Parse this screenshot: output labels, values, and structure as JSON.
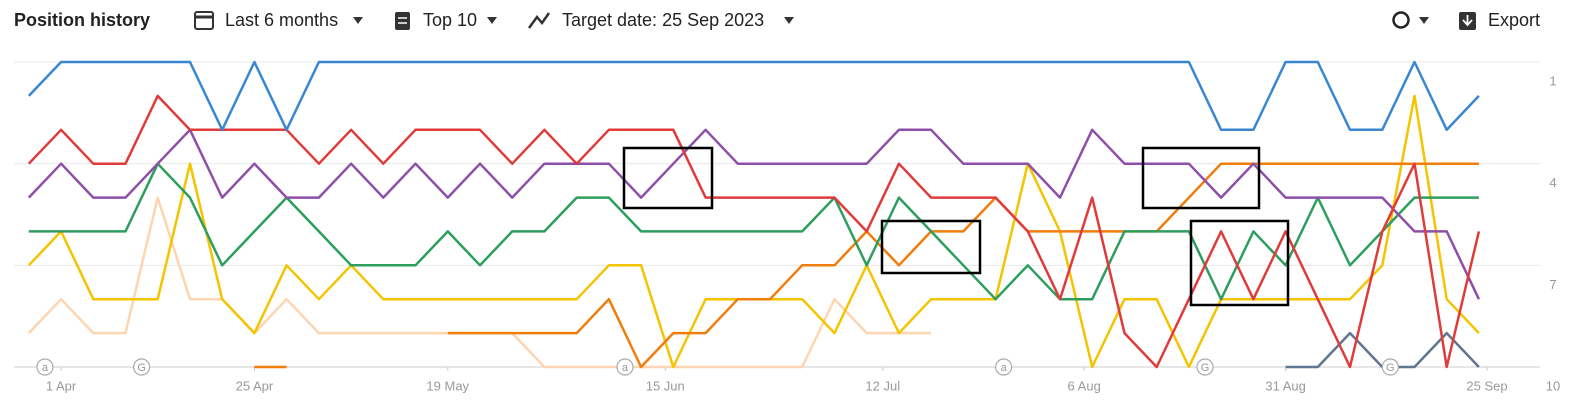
{
  "toolbar": {
    "title": "Position history",
    "period": "Last 6 months",
    "top": "Top 10",
    "target": "Target date: 25 Sep 2023",
    "export": "Export"
  },
  "chart_data": {
    "type": "line",
    "x": [
      -4,
      0,
      4,
      8,
      12,
      16,
      20,
      24,
      28,
      32,
      36,
      40,
      44,
      48,
      52,
      56,
      60,
      64,
      68,
      72,
      76,
      80,
      84,
      88,
      92,
      96,
      100,
      104,
      108,
      112,
      116,
      120,
      124,
      128,
      132,
      136,
      140,
      144,
      148,
      152,
      156,
      160,
      164,
      168,
      172,
      176
    ],
    "xlim": [
      -4.6,
      177
    ],
    "xticks": [
      {
        "value": 0,
        "label": "1 Apr"
      },
      {
        "value": 24,
        "label": "25 Apr"
      },
      {
        "value": 48,
        "label": "19 May"
      },
      {
        "value": 75,
        "label": "15 Jun"
      },
      {
        "value": 102,
        "label": "12 Jul"
      },
      {
        "value": 127,
        "label": "6 Aug"
      },
      {
        "value": 152,
        "label": "31 Aug"
      },
      {
        "value": 177,
        "label": "25 Sep"
      }
    ],
    "ylim": [
      1,
      10
    ],
    "y_reversed": true,
    "yticks": [
      1,
      4,
      7,
      10
    ],
    "grid": true,
    "series": [
      {
        "color": "#fdd5b0",
        "values": [
          9,
          8,
          9,
          9,
          5,
          8,
          8,
          9,
          8,
          9,
          9,
          9,
          9,
          9,
          9,
          9,
          10,
          10,
          10,
          10,
          10,
          10,
          10,
          10,
          10,
          8,
          9,
          9,
          9,
          null,
          null,
          null,
          null,
          null,
          null,
          null,
          null,
          null,
          null,
          null,
          null,
          null,
          null,
          null,
          null,
          null
        ]
      },
      {
        "color": "#5f7590",
        "values": [
          null,
          null,
          null,
          null,
          null,
          null,
          null,
          null,
          null,
          null,
          null,
          null,
          null,
          null,
          null,
          null,
          null,
          null,
          null,
          null,
          null,
          null,
          null,
          null,
          null,
          null,
          null,
          null,
          null,
          null,
          null,
          null,
          null,
          null,
          null,
          null,
          null,
          null,
          null,
          10,
          10,
          9,
          10,
          10,
          9,
          10
        ]
      },
      {
        "color": "#f5c400",
        "values": [
          7,
          6,
          8,
          8,
          8,
          4,
          8,
          9,
          7,
          8,
          7,
          8,
          8,
          8,
          8,
          8,
          8,
          8,
          7,
          7,
          10,
          8,
          8,
          8,
          8,
          9,
          7,
          9,
          8,
          8,
          8,
          4,
          6,
          10,
          8,
          8,
          10,
          8,
          8,
          8,
          8,
          8,
          7,
          2,
          8,
          9
        ]
      },
      {
        "color": "#f07d0c",
        "values": [
          null,
          null,
          null,
          null,
          null,
          null,
          null,
          10,
          10,
          null,
          null,
          null,
          null,
          9,
          9,
          9,
          9,
          9,
          8,
          10,
          9,
          9,
          8,
          8,
          7,
          7,
          6,
          7,
          6,
          6,
          5,
          6,
          6,
          6,
          6,
          6,
          5,
          4,
          4,
          4,
          4,
          4,
          4,
          4,
          4,
          4
        ]
      },
      {
        "color": "#2e9e5e",
        "values": [
          6,
          6,
          6,
          6,
          4,
          5,
          7,
          6,
          5,
          6,
          7,
          7,
          7,
          6,
          7,
          6,
          6,
          5,
          5,
          6,
          6,
          6,
          6,
          6,
          6,
          5,
          7,
          5,
          6,
          7,
          8,
          7,
          8,
          8,
          6,
          6,
          6,
          8,
          6,
          7,
          5,
          7,
          6,
          5,
          5,
          5
        ]
      },
      {
        "color": "#8e4fa8",
        "values": [
          5,
          4,
          5,
          5,
          4,
          3,
          5,
          4,
          5,
          5,
          4,
          5,
          4,
          5,
          4,
          5,
          4,
          4,
          4,
          5,
          4,
          3,
          4,
          4,
          4,
          4,
          4,
          3,
          3,
          4,
          4,
          4,
          5,
          3,
          4,
          4,
          4,
          5,
          4,
          5,
          5,
          5,
          5,
          6,
          6,
          8
        ]
      },
      {
        "color": "#e03b3b",
        "values": [
          4,
          3,
          4,
          4,
          2,
          3,
          3,
          3,
          3,
          4,
          3,
          4,
          3,
          3,
          3,
          4,
          3,
          4,
          3,
          3,
          3,
          5,
          5,
          5,
          5,
          5,
          6,
          4,
          5,
          5,
          5,
          6,
          8,
          5,
          9,
          10,
          8,
          6,
          8,
          6,
          8,
          10,
          6,
          4,
          10,
          6
        ]
      },
      {
        "color": "#3a86d0",
        "values": [
          2,
          1,
          1,
          1,
          1,
          1,
          3,
          1,
          3,
          1,
          1,
          1,
          1,
          1,
          1,
          1,
          1,
          1,
          1,
          1,
          1,
          1,
          1,
          1,
          1,
          1,
          1,
          1,
          1,
          1,
          1,
          1,
          1,
          1,
          1,
          1,
          1,
          3,
          3,
          1,
          1,
          3,
          3,
          1,
          3,
          2
        ]
      }
    ],
    "annotations": [
      {
        "x": -2,
        "label": "a"
      },
      {
        "x": 10,
        "label": "G"
      },
      {
        "x": 70,
        "label": "a"
      },
      {
        "x": 117,
        "label": "a"
      },
      {
        "x": 142,
        "label": "G"
      },
      {
        "x": 165,
        "label": "G"
      }
    ]
  }
}
